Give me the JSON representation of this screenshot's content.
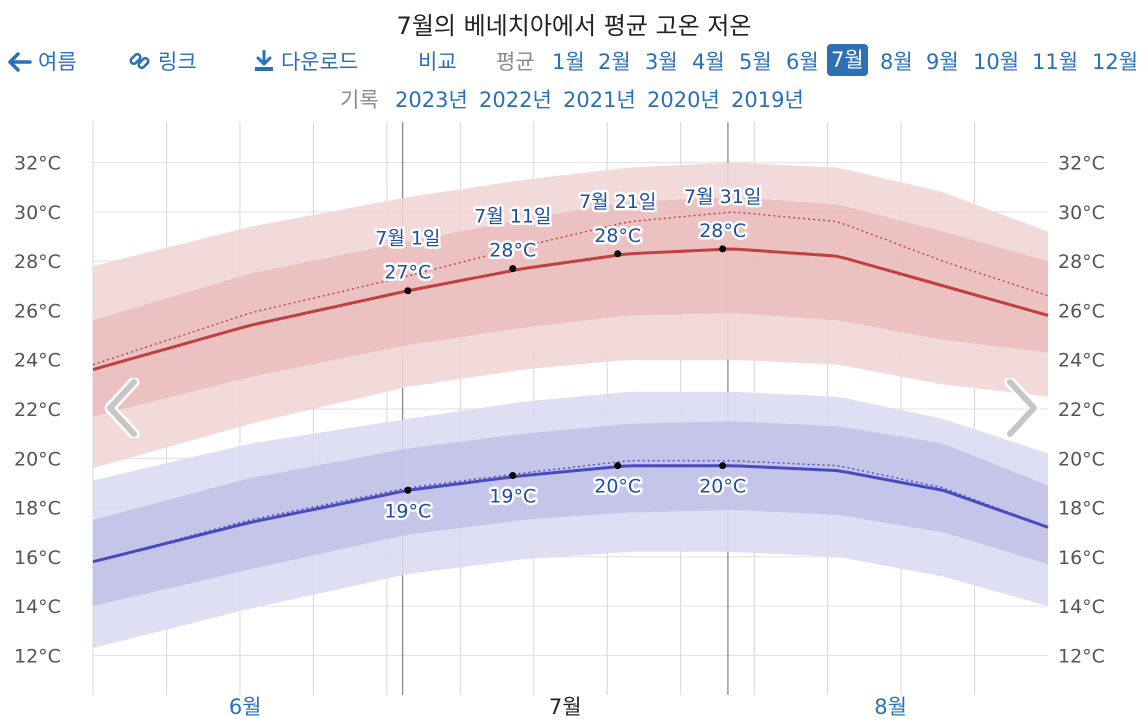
{
  "title": "7월의 베네치아에서 평균 고온 저온",
  "nav": {
    "back_label": "여름",
    "link_label": "링크",
    "download_label": "다운로드",
    "compare_label": "비교",
    "average_label": "평균",
    "months": [
      "1월",
      "2월",
      "3월",
      "4월",
      "5월",
      "6월",
      "7월",
      "8월",
      "9월",
      "10월",
      "11월",
      "12월"
    ],
    "active_month": "7월",
    "record_label": "기록",
    "years": [
      "2023년",
      "2022년",
      "2021년",
      "2020년",
      "2019년"
    ]
  },
  "icons": {
    "back": "arrow-left-icon",
    "link": "link-icon",
    "download": "download-icon",
    "prev": "chevron-left-icon",
    "next": "chevron-right-icon"
  },
  "colors": {
    "high_line": "#c04040",
    "high_band_inner": "#e8b8b8",
    "high_band_outer": "#f2d6d6",
    "low_line": "#4a4ac0",
    "low_band_inner": "#bcbce6",
    "low_band_outer": "#dcdcf2",
    "label_text": "#1f4fa0",
    "grid": "#e0e0e0"
  },
  "chart_data": {
    "type": "area",
    "x_unit": "day",
    "x_range": [
      "6월 1일",
      "8월 31일"
    ],
    "y_axis": {
      "min": 11,
      "max": 33,
      "ticks": [
        12,
        14,
        16,
        18,
        20,
        22,
        24,
        26,
        28,
        30,
        32
      ],
      "unit": "°C"
    },
    "x_ticks": [
      {
        "label": "6월",
        "day": 15.5,
        "current": false
      },
      {
        "label": "7월",
        "day": 46,
        "current": true
      },
      {
        "label": "8월",
        "day": 77,
        "current": false
      }
    ],
    "x_day_grid": [
      1,
      8,
      15,
      22,
      29,
      36,
      43,
      50,
      57,
      64,
      71,
      78,
      85
    ],
    "month_boundaries": [
      30.5,
      61.5
    ],
    "x": [
      1,
      16,
      31,
      42,
      52,
      62,
      72,
      82,
      92
    ],
    "series": [
      {
        "high_avg": [
          23.6,
          25.4,
          26.8,
          27.7,
          28.3,
          28.5,
          28.2,
          27.0,
          25.8
        ],
        "high_p75": [
          25.6,
          27.5,
          28.8,
          29.7,
          30.4,
          30.6,
          30.3,
          29.2,
          28.0
        ],
        "high_p25": [
          21.7,
          23.3,
          24.6,
          25.3,
          25.8,
          25.9,
          25.6,
          24.8,
          24.3
        ],
        "high_p90": [
          27.8,
          29.4,
          30.6,
          31.3,
          31.8,
          32.0,
          31.8,
          30.8,
          29.2
        ],
        "high_p10": [
          19.6,
          21.4,
          22.9,
          23.6,
          24.0,
          24.0,
          23.8,
          23.0,
          22.5
        ],
        "high_ref": [
          23.8,
          25.9,
          27.4,
          28.6,
          29.6,
          30.0,
          29.6,
          28.0,
          26.6
        ],
        "low_avg": [
          15.8,
          17.4,
          18.7,
          19.3,
          19.7,
          19.7,
          19.5,
          18.7,
          17.2
        ],
        "low_p75": [
          17.5,
          19.2,
          20.4,
          21.0,
          21.4,
          21.5,
          21.3,
          20.6,
          18.9
        ],
        "low_p25": [
          14.0,
          15.5,
          16.9,
          17.5,
          17.8,
          17.9,
          17.7,
          17.0,
          15.7
        ],
        "low_p90": [
          19.1,
          20.6,
          21.6,
          22.3,
          22.7,
          22.7,
          22.5,
          21.6,
          20.2
        ],
        "low_p10": [
          12.3,
          13.9,
          15.3,
          15.9,
          16.2,
          16.2,
          16.0,
          15.2,
          14.0
        ],
        "low_ref": [
          15.8,
          17.5,
          18.8,
          19.4,
          19.9,
          19.9,
          19.7,
          18.8,
          17.2
        ]
      }
    ],
    "annotations": [
      {
        "date": "7월 1일",
        "day": 31,
        "high": 26.8,
        "high_label": "27°C",
        "low": 18.7,
        "low_label": "19°C"
      },
      {
        "date": "7월 11일",
        "day": 41,
        "high": 27.7,
        "high_label": "28°C",
        "low": 19.3,
        "low_label": "19°C"
      },
      {
        "date": "7월 21일",
        "day": 51,
        "high": 28.3,
        "high_label": "28°C",
        "low": 19.7,
        "low_label": "20°C"
      },
      {
        "date": "7월 31일",
        "day": 61,
        "high": 28.5,
        "high_label": "28°C",
        "low": 19.7,
        "low_label": "20°C"
      }
    ]
  }
}
